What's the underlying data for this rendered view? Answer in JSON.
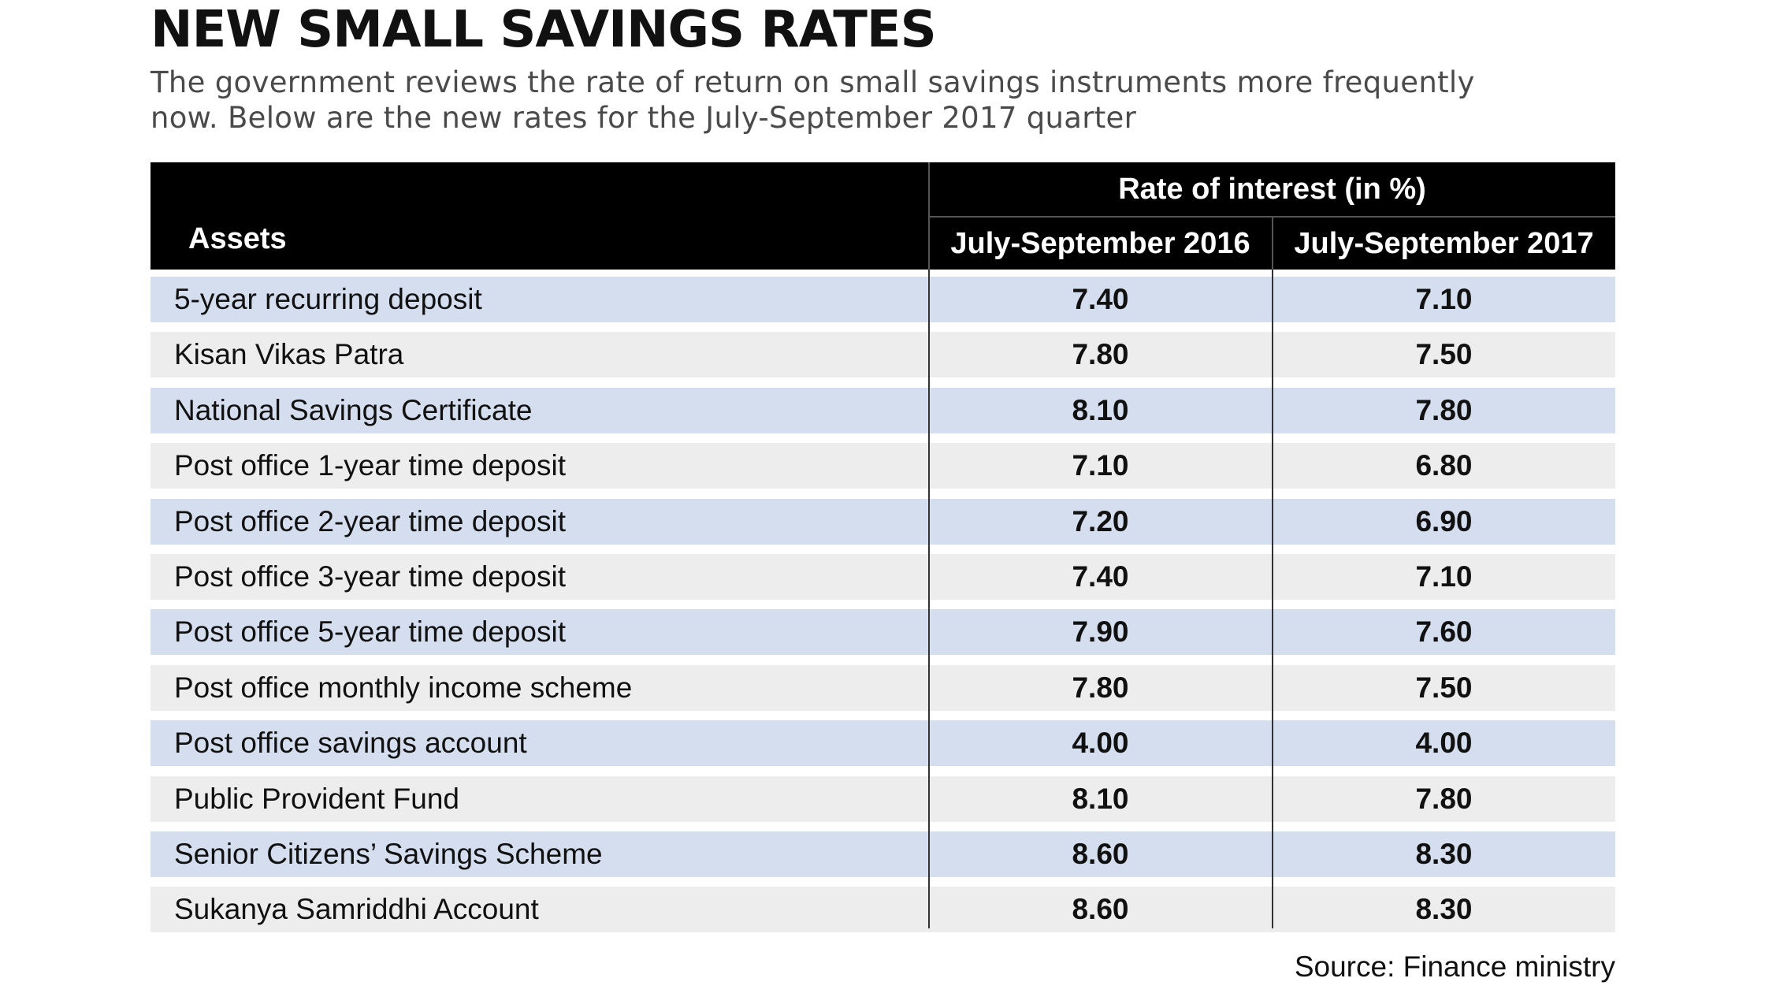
{
  "title": "NEW SMALL SAVINGS RATES",
  "subtitle_lines": [
    "The government reviews the rate of return on small savings instruments more frequently",
    "now. Below are the new rates for the July-September 2017 quarter"
  ],
  "source": "Source: Finance ministry",
  "colors": {
    "header_bg": "#000000",
    "row_blue": "#d4deee",
    "row_grey": "#ededed"
  },
  "chart_data": {
    "type": "table",
    "title": "NEW SMALL SAVINGS RATES",
    "header_group": "Rate of interest (in %)",
    "columns": [
      "Assets",
      "July-September 2016",
      "July-September 2017"
    ],
    "rows": [
      {
        "asset": "5-year recurring deposit",
        "v2016": "7.40",
        "v2017": "7.10"
      },
      {
        "asset": "Kisan Vikas Patra",
        "v2016": "7.80",
        "v2017": "7.50"
      },
      {
        "asset": "National Savings Certificate",
        "v2016": "8.10",
        "v2017": "7.80"
      },
      {
        "asset": "Post office 1-year time deposit",
        "v2016": "7.10",
        "v2017": "6.80"
      },
      {
        "asset": "Post office 2-year time deposit",
        "v2016": "7.20",
        "v2017": "6.90"
      },
      {
        "asset": "Post office 3-year time deposit",
        "v2016": "7.40",
        "v2017": "7.10"
      },
      {
        "asset": "Post office 5-year time deposit",
        "v2016": "7.90",
        "v2017": "7.60"
      },
      {
        "asset": "Post office monthly income scheme",
        "v2016": "7.80",
        "v2017": "7.50"
      },
      {
        "asset": "Post office savings account",
        "v2016": "4.00",
        "v2017": "4.00"
      },
      {
        "asset": "Public Provident Fund",
        "v2016": "8.10",
        "v2017": "7.80"
      },
      {
        "asset": "Senior Citizens’ Savings Scheme",
        "v2016": "8.60",
        "v2017": "8.30"
      },
      {
        "asset": "Sukanya Samriddhi Account",
        "v2016": "8.60",
        "v2017": "8.30"
      }
    ]
  }
}
